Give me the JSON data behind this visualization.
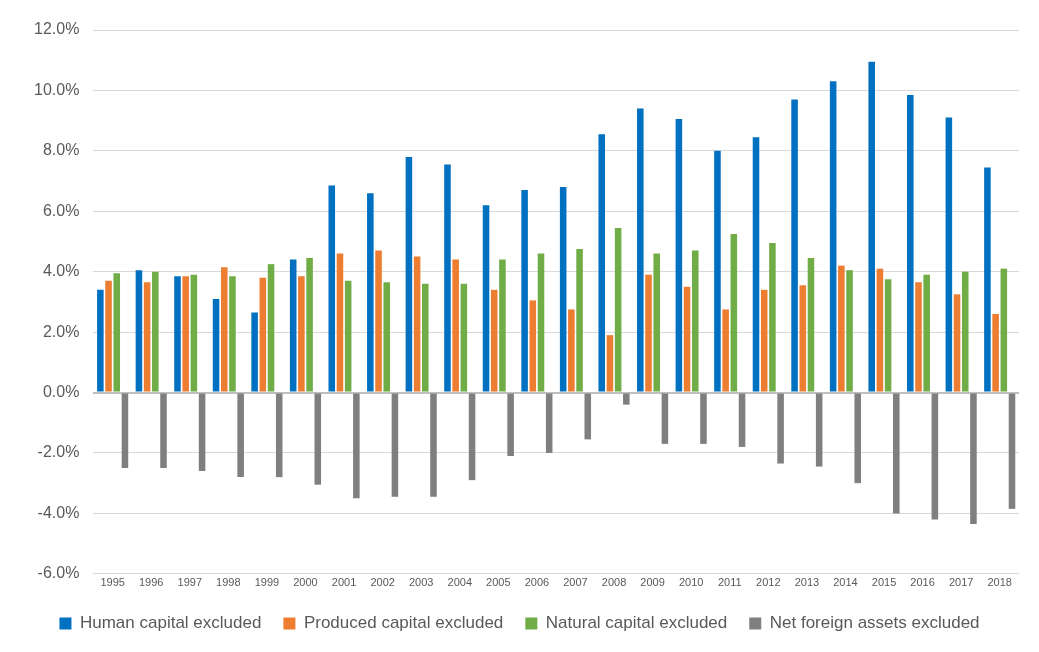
{
  "chart_data": {
    "type": "bar",
    "categories": [
      "1995",
      "1996",
      "1997",
      "1998",
      "1999",
      "2000",
      "2001",
      "2002",
      "2003",
      "2004",
      "2005",
      "2006",
      "2007",
      "2008",
      "2009",
      "2010",
      "2011",
      "2012",
      "2013",
      "2014",
      "2015",
      "2016",
      "2017",
      "2018"
    ],
    "series": [
      {
        "name": "Human capital excluded",
        "color": "#0070c0",
        "values": [
          3.4,
          4.05,
          3.85,
          3.1,
          2.65,
          4.4,
          6.85,
          6.6,
          7.8,
          7.55,
          6.2,
          6.7,
          6.8,
          8.55,
          9.4,
          9.05,
          8.0,
          8.45,
          9.7,
          10.3,
          10.95,
          9.85,
          9.1,
          7.45
        ]
      },
      {
        "name": "Produced capital excluded",
        "color": "#ed7d31",
        "values": [
          3.7,
          3.65,
          3.85,
          4.15,
          3.8,
          3.85,
          4.6,
          4.7,
          4.5,
          4.4,
          3.4,
          3.05,
          2.75,
          1.9,
          3.9,
          3.5,
          2.75,
          3.4,
          3.55,
          4.2,
          4.1,
          3.65,
          3.25,
          2.6
        ]
      },
      {
        "name": "Natural capital excluded",
        "color": "#70ad47",
        "values": [
          3.95,
          4.0,
          3.9,
          3.85,
          4.25,
          4.45,
          3.7,
          3.65,
          3.6,
          3.6,
          4.4,
          4.6,
          4.75,
          5.45,
          4.6,
          4.7,
          5.25,
          4.95,
          4.45,
          4.05,
          3.75,
          3.9,
          4.0,
          4.1
        ]
      },
      {
        "name": "Net foreign assets excluded",
        "color": "#7f7f7f",
        "values": [
          -2.5,
          -2.5,
          -2.6,
          -2.8,
          -2.8,
          -3.05,
          -3.5,
          -3.45,
          -3.45,
          -2.9,
          -2.1,
          -2.0,
          -1.55,
          -0.4,
          -1.7,
          -1.7,
          -1.8,
          -2.35,
          -2.45,
          -3.0,
          -4.0,
          -4.2,
          -4.35,
          -3.85
        ]
      }
    ],
    "ylim": [
      -6,
      12
    ],
    "yticks": [
      {
        "value": -6,
        "label": "-6.0%"
      },
      {
        "value": -4,
        "label": "-4.0%"
      },
      {
        "value": -2,
        "label": "-2.0%"
      },
      {
        "value": 0,
        "label": "0.0%"
      },
      {
        "value": 2,
        "label": "2.0%"
      },
      {
        "value": 4,
        "label": "4.0%"
      },
      {
        "value": 6,
        "label": "6.0%"
      },
      {
        "value": 8,
        "label": "8.0%"
      },
      {
        "value": 10,
        "label": "10.0%"
      },
      {
        "value": 12,
        "label": "12.0%"
      }
    ],
    "grid": "y",
    "legend": "bottom"
  }
}
